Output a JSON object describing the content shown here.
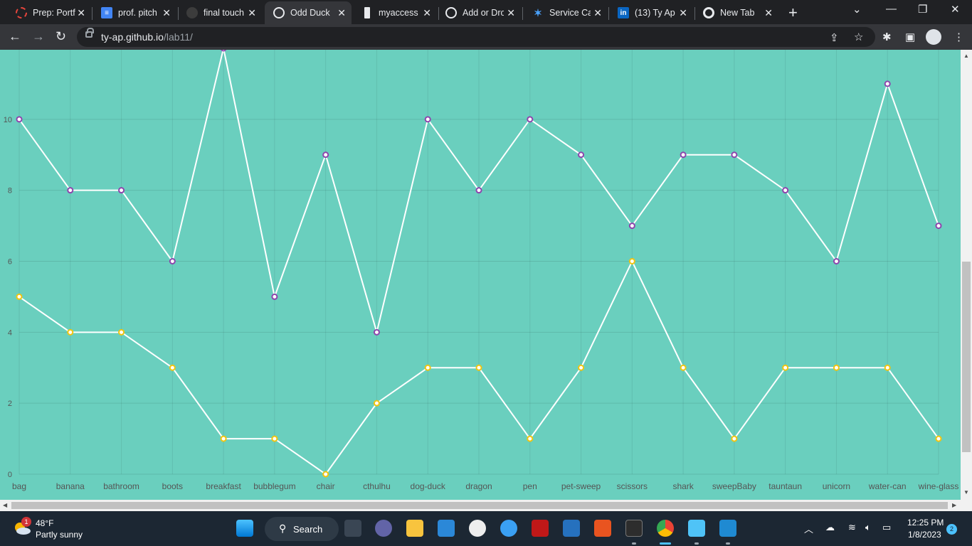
{
  "browser": {
    "tabs": [
      {
        "title": "Prep: Portf",
        "icon": "prep-icon",
        "active": false
      },
      {
        "title": "prof. pitch",
        "icon": "docs-icon",
        "active": false
      },
      {
        "title": "final touch",
        "icon": "github-icon",
        "active": false
      },
      {
        "title": "Odd Duck",
        "icon": "globe-icon",
        "active": true
      },
      {
        "title": "myaccess.s",
        "icon": "page-icon",
        "active": false
      },
      {
        "title": "Add or Dro",
        "icon": "globe-icon",
        "active": false
      },
      {
        "title": "Service Cat",
        "icon": "service-icon",
        "active": false
      },
      {
        "title": "(13) Ty Ap",
        "icon": "linkedin-icon",
        "active": false
      },
      {
        "title": "New Tab",
        "icon": "chrome-icon",
        "active": false
      }
    ],
    "url_host": "ty-ap.github.io",
    "url_path": "/lab11/"
  },
  "chart_data": {
    "type": "line",
    "categories": [
      "bag",
      "banana",
      "bathroom",
      "boots",
      "breakfast",
      "bubblegum",
      "chair",
      "cthulhu",
      "dog-duck",
      "dragon",
      "pen",
      "pet-sweep",
      "scissors",
      "shark",
      "sweepBaby",
      "tauntaun",
      "unicorn",
      "water-can",
      "wine-glass"
    ],
    "series": [
      {
        "values": [
          10,
          8,
          8,
          6,
          12,
          5,
          9,
          4,
          10,
          8,
          10,
          9,
          7,
          9,
          9,
          8,
          6,
          11,
          7
        ],
        "point_color": "#8e44ad"
      },
      {
        "values": [
          5,
          4,
          4,
          3,
          1,
          1,
          0,
          2,
          3,
          3,
          1,
          3,
          6,
          3,
          1,
          3,
          3,
          3,
          1
        ],
        "point_color": "#f1c40f"
      }
    ],
    "y_ticks": [
      0,
      2,
      4,
      6,
      8,
      10
    ],
    "ylim": [
      0,
      11.96
    ],
    "grid": true,
    "line_color": "#ffffff",
    "background": "#6acfbe"
  },
  "taskbar": {
    "weather_temp": "48°F",
    "weather_desc": "Partly sunny",
    "weather_badge": "1",
    "search_label": "Search",
    "time": "12:25 PM",
    "date": "1/8/2023",
    "notification_count": "2"
  }
}
